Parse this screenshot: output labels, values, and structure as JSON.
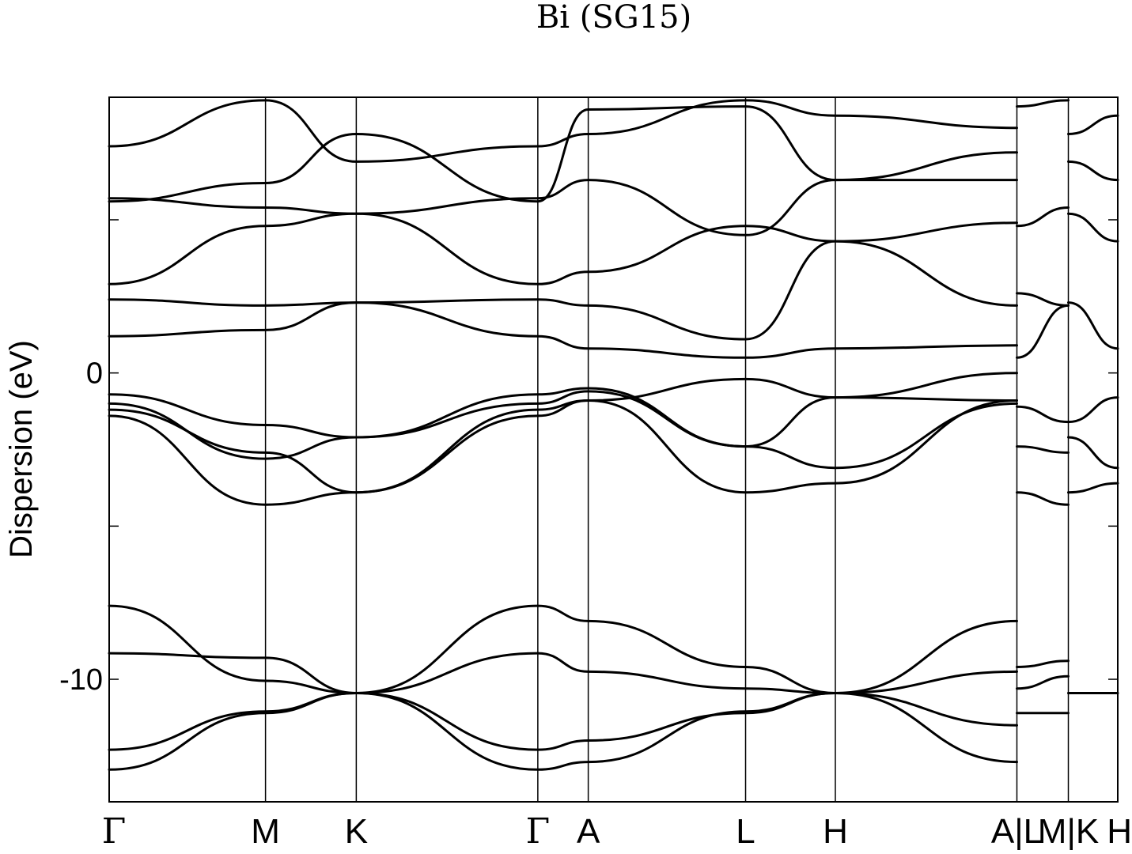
{
  "chart_data": {
    "type": "line",
    "title": "Bi (SG15)",
    "ylabel": "Dispersion (eV)",
    "xlabel": "",
    "ylim": [
      -14,
      9
    ],
    "yticks": [
      {
        "value": 0,
        "label": "0"
      },
      {
        "value": -10,
        "label": "-10"
      }
    ],
    "yticks_minor": [
      5,
      -5
    ],
    "grid": false,
    "legend": "none",
    "color": "#000000",
    "kpoints": [
      {
        "label": "Γ",
        "x": 0.0
      },
      {
        "label": "M",
        "x": 0.155
      },
      {
        "label": "K",
        "x": 0.245
      },
      {
        "label": "Γ",
        "x": 0.425
      },
      {
        "label": "A",
        "x": 0.475
      },
      {
        "label": "L",
        "x": 0.631
      },
      {
        "label": "H",
        "x": 0.72
      },
      {
        "label": "A|L",
        "x": 0.9
      },
      {
        "label": "M|K",
        "x": 0.951
      },
      {
        "label": "H",
        "x": 1.0
      }
    ],
    "series": [
      {
        "x": [
          0,
          0.155,
          0.245,
          0.425,
          0.475,
          0.631,
          0.72,
          0.9
        ],
        "y": [
          -12.3,
          -11.05,
          -10.45,
          -12.3,
          -12.0,
          -11.1,
          -10.45,
          -11.5
        ]
      },
      {
        "x": [
          0,
          0.155,
          0.245,
          0.425,
          0.475,
          0.631,
          0.72,
          0.9
        ],
        "y": [
          -12.95,
          -11.1,
          -10.45,
          -12.95,
          -12.7,
          -11.05,
          -10.45,
          -12.7
        ]
      },
      {
        "x": [
          0,
          0.155,
          0.245,
          0.425,
          0.475,
          0.631,
          0.72,
          0.9
        ],
        "y": [
          -7.6,
          -10.05,
          -10.45,
          -7.6,
          -8.1,
          -9.6,
          -10.45,
          -8.1
        ]
      },
      {
        "x": [
          0,
          0.155,
          0.245,
          0.425,
          0.475,
          0.631,
          0.72,
          0.9
        ],
        "y": [
          -9.15,
          -9.3,
          -10.45,
          -9.15,
          -9.75,
          -10.3,
          -10.45,
          -9.75
        ]
      },
      {
        "x": [
          0,
          0.155,
          0.245,
          0.425,
          0.475,
          0.631,
          0.72,
          0.9
        ],
        "y": [
          -1.4,
          -4.3,
          -3.9,
          -1.4,
          -0.9,
          -3.9,
          -3.6,
          -0.9
        ]
      },
      {
        "x": [
          0,
          0.155,
          0.245,
          0.425,
          0.475,
          0.631,
          0.72,
          0.9
        ],
        "y": [
          -1.0,
          -2.8,
          -2.1,
          -1.0,
          -0.6,
          -2.4,
          -3.1,
          -1.0
        ]
      },
      {
        "x": [
          0,
          0.155,
          0.245,
          0.425,
          0.475,
          0.631,
          0.72,
          0.9
        ],
        "y": [
          -0.7,
          -1.7,
          -2.1,
          -0.7,
          -0.5,
          -2.4,
          -0.8,
          -0.9
        ]
      },
      {
        "x": [
          0,
          0.155,
          0.245,
          0.425,
          0.475,
          0.631,
          0.72,
          0.9
        ],
        "y": [
          -1.2,
          -2.6,
          -3.9,
          -1.2,
          -0.9,
          -0.2,
          -0.8,
          0.0
        ]
      },
      {
        "x": [
          0,
          0.155,
          0.245,
          0.425,
          0.475,
          0.631,
          0.72,
          0.9
        ],
        "y": [
          1.2,
          1.4,
          2.3,
          1.2,
          0.8,
          0.5,
          0.8,
          0.9
        ]
      },
      {
        "x": [
          0,
          0.155,
          0.245,
          0.425,
          0.475,
          0.631,
          0.72,
          0.9
        ],
        "y": [
          2.4,
          2.2,
          2.3,
          2.4,
          2.2,
          1.1,
          4.3,
          2.2
        ]
      },
      {
        "x": [
          0,
          0.155,
          0.245,
          0.425,
          0.475,
          0.631,
          0.72,
          0.9
        ],
        "y": [
          2.9,
          4.8,
          5.2,
          2.9,
          3.3,
          4.8,
          4.3,
          4.9
        ]
      },
      {
        "x": [
          0,
          0.155,
          0.245,
          0.425,
          0.475,
          0.631,
          0.72,
          0.9
        ],
        "y": [
          5.7,
          5.4,
          5.2,
          5.7,
          6.3,
          4.5,
          6.3,
          6.3
        ]
      },
      {
        "x": [
          0,
          0.155,
          0.245,
          0.425,
          0.475,
          0.631,
          0.72,
          0.9
        ],
        "y": [
          5.6,
          6.2,
          7.8,
          5.6,
          8.6,
          8.7,
          6.3,
          7.2
        ]
      },
      {
        "x": [
          0,
          0.155,
          0.245,
          0.425,
          0.475,
          0.631,
          0.72,
          0.9
        ],
        "y": [
          7.4,
          8.9,
          6.9,
          7.4,
          7.8,
          8.9,
          8.4,
          8.0
        ]
      }
    ],
    "series_right": [
      {
        "x": [
          0.9,
          0.951
        ],
        "y": [
          -11.1,
          -11.1
        ]
      },
      {
        "x": [
          0.9,
          0.951
        ],
        "y": [
          -9.6,
          -9.4
        ]
      },
      {
        "x": [
          0.9,
          0.951
        ],
        "y": [
          -10.3,
          -9.9
        ]
      },
      {
        "x": [
          0.9,
          0.951
        ],
        "y": [
          -3.9,
          -4.3
        ]
      },
      {
        "x": [
          0.9,
          0.951
        ],
        "y": [
          -2.4,
          -2.6
        ]
      },
      {
        "x": [
          0.9,
          0.951
        ],
        "y": [
          -1.1,
          -1.6
        ]
      },
      {
        "x": [
          0.9,
          0.951
        ],
        "y": [
          0.5,
          2.2
        ]
      },
      {
        "x": [
          0.9,
          0.951
        ],
        "y": [
          2.6,
          2.2
        ]
      },
      {
        "x": [
          0.9,
          0.951
        ],
        "y": [
          4.8,
          5.4
        ]
      },
      {
        "x": [
          0.9,
          0.951
        ],
        "y": [
          8.7,
          8.9
        ]
      },
      {
        "x": [
          0.951,
          1.0
        ],
        "y": [
          -10.45,
          -10.45
        ]
      },
      {
        "x": [
          0.951,
          1.0
        ],
        "y": [
          -3.9,
          -3.6
        ]
      },
      {
        "x": [
          0.951,
          1.0
        ],
        "y": [
          -2.1,
          -3.1
        ]
      },
      {
        "x": [
          0.951,
          1.0
        ],
        "y": [
          -1.6,
          -0.8
        ]
      },
      {
        "x": [
          0.951,
          1.0
        ],
        "y": [
          2.3,
          0.8
        ]
      },
      {
        "x": [
          0.951,
          1.0
        ],
        "y": [
          5.2,
          4.3
        ]
      },
      {
        "x": [
          0.951,
          1.0
        ],
        "y": [
          6.9,
          6.3
        ]
      },
      {
        "x": [
          0.951,
          1.0
        ],
        "y": [
          7.8,
          8.4
        ]
      }
    ]
  }
}
